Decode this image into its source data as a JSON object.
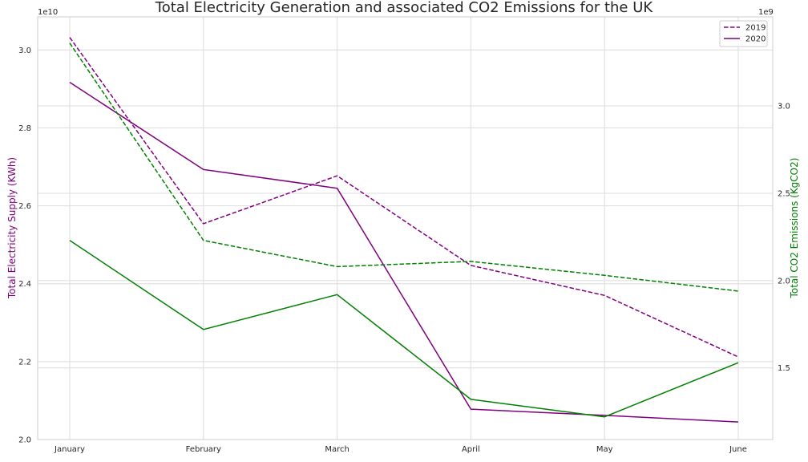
{
  "chart_data": {
    "type": "line",
    "title": "Total Electricity Generation and associated CO2 Emissions for the UK",
    "categories": [
      "January",
      "February",
      "March",
      "April",
      "May",
      "June"
    ],
    "y_left": {
      "label": "Total Electricity Supply (KWh)",
      "color": "#800080",
      "offset_text": "1e10",
      "ylim": [
        2.0,
        3.085
      ],
      "ticks": [
        2.0,
        2.2,
        2.4,
        2.6,
        2.8,
        3.0
      ],
      "tick_labels": [
        "2.0",
        "2.2",
        "2.4",
        "2.6",
        "2.8",
        "3.0"
      ]
    },
    "y_right": {
      "label": "Total CO2 Emissions (KgCO2)",
      "color": "#008000",
      "offset_text": "1e9",
      "ylim": [
        1.09,
        3.51
      ],
      "ticks": [
        1.5,
        2.0,
        2.5,
        3.0
      ],
      "tick_labels": [
        "1.5",
        "2.0",
        "2.5",
        "3.0"
      ]
    },
    "series": [
      {
        "name": "2019",
        "axis": "left",
        "style": "dashed",
        "color": "#800080",
        "values": [
          3.032,
          2.554,
          2.677,
          2.447,
          2.37,
          2.212
        ]
      },
      {
        "name": "2020",
        "axis": "left",
        "style": "solid",
        "color": "#800080",
        "values": [
          2.917,
          2.693,
          2.645,
          2.078,
          2.062,
          2.045
        ]
      },
      {
        "axis": "right",
        "style": "dashed",
        "color": "#008000",
        "values": [
          3.36,
          2.23,
          2.08,
          2.11,
          2.03,
          1.94
        ]
      },
      {
        "axis": "right",
        "style": "solid",
        "color": "#008000",
        "values": [
          2.23,
          1.72,
          1.92,
          1.32,
          1.22,
          1.53
        ]
      }
    ],
    "legend": {
      "placement": "top-right",
      "entries": [
        {
          "label": "2019",
          "style": "dashed",
          "color": "#800080"
        },
        {
          "label": "2020",
          "style": "solid",
          "color": "#800080"
        }
      ]
    },
    "grid": true
  }
}
